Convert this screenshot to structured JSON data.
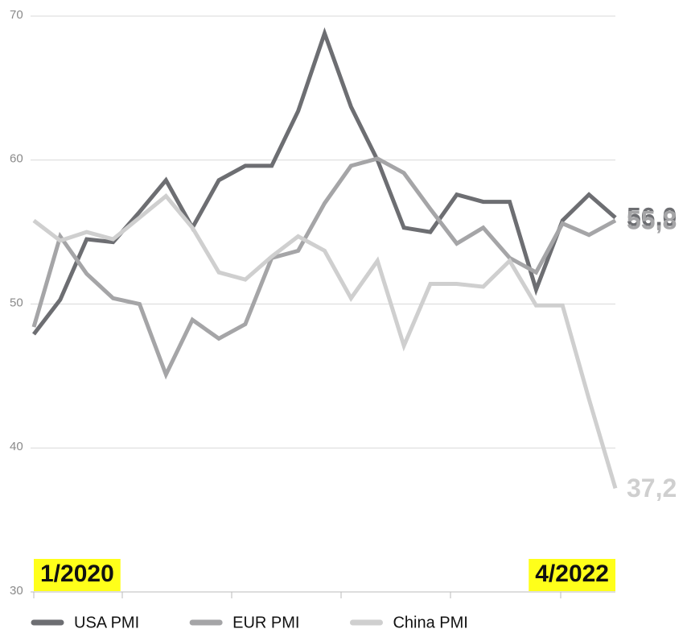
{
  "chart_data": {
    "type": "line",
    "categories": [
      "1/2020",
      null,
      null,
      null,
      null,
      null,
      null,
      null,
      null,
      null,
      null,
      null,
      null,
      null,
      null,
      null,
      null,
      null,
      null,
      null,
      null,
      null,
      "4/2022"
    ],
    "ylim": [
      30,
      70
    ],
    "yticks": [
      30,
      40,
      50,
      60,
      70
    ],
    "grid": true,
    "series": [
      {
        "name": "USA PMI",
        "color": "#6d6e72",
        "values": [
          47.9,
          50.3,
          54.5,
          54.3,
          56.4,
          58.6,
          55.3,
          58.6,
          59.6,
          59.6,
          63.4,
          68.8,
          63.7,
          60.0,
          55.3,
          55.0,
          57.6,
          57.1,
          57.1,
          51.0,
          55.8,
          57.6,
          56.0
        ],
        "value_labels": [
          null,
          null,
          null,
          null,
          null,
          null,
          null,
          null,
          null,
          null,
          null,
          null,
          null,
          null,
          null,
          null,
          null,
          null,
          null,
          null,
          null,
          null,
          "56,0"
        ]
      },
      {
        "name": "EUR PMI",
        "color": "#a5a5a7",
        "values": [
          48.4,
          54.7,
          52.1,
          50.4,
          50.0,
          45.1,
          48.9,
          47.6,
          48.6,
          53.2,
          53.7,
          57.0,
          59.6,
          60.1,
          59.1,
          56.6,
          54.2,
          55.3,
          53.2,
          52.2,
          55.6,
          54.8,
          55.8
        ],
        "value_labels": [
          null,
          null,
          null,
          null,
          null,
          null,
          null,
          null,
          null,
          null,
          null,
          null,
          null,
          null,
          null,
          null,
          null,
          null,
          null,
          null,
          null,
          null,
          "55,8"
        ]
      },
      {
        "name": "China PMI",
        "color": "#cfcfcf",
        "values": [
          55.8,
          54.4,
          55.0,
          54.5,
          56.0,
          57.5,
          55.3,
          52.2,
          51.7,
          53.3,
          54.7,
          53.7,
          50.4,
          53.0,
          47.1,
          51.4,
          51.4,
          51.2,
          53.0,
          49.9,
          49.9,
          43.4,
          37.2
        ],
        "value_labels": [
          null,
          null,
          null,
          null,
          null,
          null,
          null,
          null,
          null,
          null,
          null,
          null,
          null,
          null,
          null,
          null,
          null,
          null,
          null,
          null,
          null,
          null,
          "37,2"
        ]
      }
    ]
  }
}
